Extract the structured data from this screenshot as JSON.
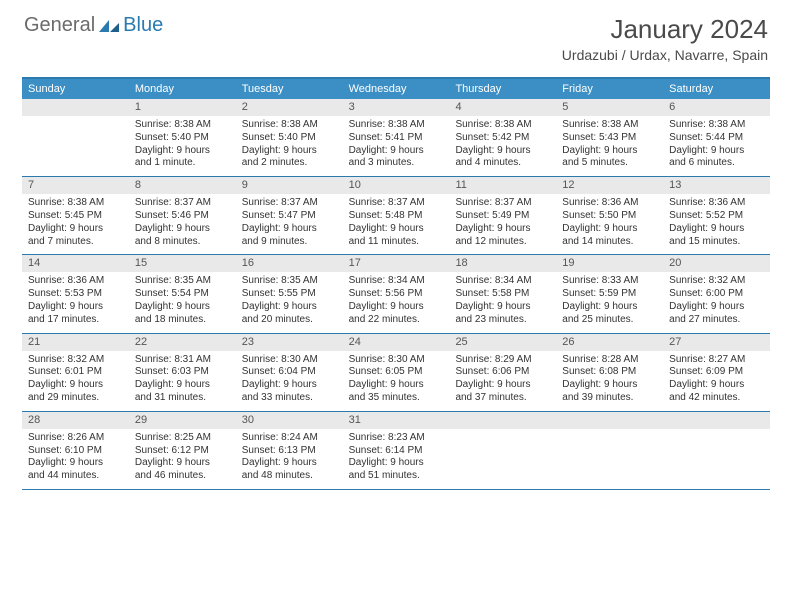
{
  "logo": {
    "general": "General",
    "blue": "Blue"
  },
  "title": "January 2024",
  "location": "Urdazubi / Urdax, Navarre, Spain",
  "colors": {
    "header_band": "#3b8fc4",
    "rule": "#2a7ab0",
    "day_band": "#e9e9e9",
    "text": "#333333",
    "title_text": "#4a4a4a",
    "logo_gray": "#6b6b6b",
    "logo_blue": "#2a7ab0",
    "background": "#ffffff"
  },
  "typography": {
    "title_fontsize": 26,
    "location_fontsize": 14,
    "dow_fontsize": 11,
    "daynum_fontsize": 11,
    "body_fontsize": 10
  },
  "dow": [
    "Sunday",
    "Monday",
    "Tuesday",
    "Wednesday",
    "Thursday",
    "Friday",
    "Saturday"
  ],
  "weeks": [
    [
      {
        "n": "",
        "lines": [
          "",
          "",
          "",
          ""
        ]
      },
      {
        "n": "1",
        "lines": [
          "Sunrise: 8:38 AM",
          "Sunset: 5:40 PM",
          "Daylight: 9 hours",
          "and 1 minute."
        ]
      },
      {
        "n": "2",
        "lines": [
          "Sunrise: 8:38 AM",
          "Sunset: 5:40 PM",
          "Daylight: 9 hours",
          "and 2 minutes."
        ]
      },
      {
        "n": "3",
        "lines": [
          "Sunrise: 8:38 AM",
          "Sunset: 5:41 PM",
          "Daylight: 9 hours",
          "and 3 minutes."
        ]
      },
      {
        "n": "4",
        "lines": [
          "Sunrise: 8:38 AM",
          "Sunset: 5:42 PM",
          "Daylight: 9 hours",
          "and 4 minutes."
        ]
      },
      {
        "n": "5",
        "lines": [
          "Sunrise: 8:38 AM",
          "Sunset: 5:43 PM",
          "Daylight: 9 hours",
          "and 5 minutes."
        ]
      },
      {
        "n": "6",
        "lines": [
          "Sunrise: 8:38 AM",
          "Sunset: 5:44 PM",
          "Daylight: 9 hours",
          "and 6 minutes."
        ]
      }
    ],
    [
      {
        "n": "7",
        "lines": [
          "Sunrise: 8:38 AM",
          "Sunset: 5:45 PM",
          "Daylight: 9 hours",
          "and 7 minutes."
        ]
      },
      {
        "n": "8",
        "lines": [
          "Sunrise: 8:37 AM",
          "Sunset: 5:46 PM",
          "Daylight: 9 hours",
          "and 8 minutes."
        ]
      },
      {
        "n": "9",
        "lines": [
          "Sunrise: 8:37 AM",
          "Sunset: 5:47 PM",
          "Daylight: 9 hours",
          "and 9 minutes."
        ]
      },
      {
        "n": "10",
        "lines": [
          "Sunrise: 8:37 AM",
          "Sunset: 5:48 PM",
          "Daylight: 9 hours",
          "and 11 minutes."
        ]
      },
      {
        "n": "11",
        "lines": [
          "Sunrise: 8:37 AM",
          "Sunset: 5:49 PM",
          "Daylight: 9 hours",
          "and 12 minutes."
        ]
      },
      {
        "n": "12",
        "lines": [
          "Sunrise: 8:36 AM",
          "Sunset: 5:50 PM",
          "Daylight: 9 hours",
          "and 14 minutes."
        ]
      },
      {
        "n": "13",
        "lines": [
          "Sunrise: 8:36 AM",
          "Sunset: 5:52 PM",
          "Daylight: 9 hours",
          "and 15 minutes."
        ]
      }
    ],
    [
      {
        "n": "14",
        "lines": [
          "Sunrise: 8:36 AM",
          "Sunset: 5:53 PM",
          "Daylight: 9 hours",
          "and 17 minutes."
        ]
      },
      {
        "n": "15",
        "lines": [
          "Sunrise: 8:35 AM",
          "Sunset: 5:54 PM",
          "Daylight: 9 hours",
          "and 18 minutes."
        ]
      },
      {
        "n": "16",
        "lines": [
          "Sunrise: 8:35 AM",
          "Sunset: 5:55 PM",
          "Daylight: 9 hours",
          "and 20 minutes."
        ]
      },
      {
        "n": "17",
        "lines": [
          "Sunrise: 8:34 AM",
          "Sunset: 5:56 PM",
          "Daylight: 9 hours",
          "and 22 minutes."
        ]
      },
      {
        "n": "18",
        "lines": [
          "Sunrise: 8:34 AM",
          "Sunset: 5:58 PM",
          "Daylight: 9 hours",
          "and 23 minutes."
        ]
      },
      {
        "n": "19",
        "lines": [
          "Sunrise: 8:33 AM",
          "Sunset: 5:59 PM",
          "Daylight: 9 hours",
          "and 25 minutes."
        ]
      },
      {
        "n": "20",
        "lines": [
          "Sunrise: 8:32 AM",
          "Sunset: 6:00 PM",
          "Daylight: 9 hours",
          "and 27 minutes."
        ]
      }
    ],
    [
      {
        "n": "21",
        "lines": [
          "Sunrise: 8:32 AM",
          "Sunset: 6:01 PM",
          "Daylight: 9 hours",
          "and 29 minutes."
        ]
      },
      {
        "n": "22",
        "lines": [
          "Sunrise: 8:31 AM",
          "Sunset: 6:03 PM",
          "Daylight: 9 hours",
          "and 31 minutes."
        ]
      },
      {
        "n": "23",
        "lines": [
          "Sunrise: 8:30 AM",
          "Sunset: 6:04 PM",
          "Daylight: 9 hours",
          "and 33 minutes."
        ]
      },
      {
        "n": "24",
        "lines": [
          "Sunrise: 8:30 AM",
          "Sunset: 6:05 PM",
          "Daylight: 9 hours",
          "and 35 minutes."
        ]
      },
      {
        "n": "25",
        "lines": [
          "Sunrise: 8:29 AM",
          "Sunset: 6:06 PM",
          "Daylight: 9 hours",
          "and 37 minutes."
        ]
      },
      {
        "n": "26",
        "lines": [
          "Sunrise: 8:28 AM",
          "Sunset: 6:08 PM",
          "Daylight: 9 hours",
          "and 39 minutes."
        ]
      },
      {
        "n": "27",
        "lines": [
          "Sunrise: 8:27 AM",
          "Sunset: 6:09 PM",
          "Daylight: 9 hours",
          "and 42 minutes."
        ]
      }
    ],
    [
      {
        "n": "28",
        "lines": [
          "Sunrise: 8:26 AM",
          "Sunset: 6:10 PM",
          "Daylight: 9 hours",
          "and 44 minutes."
        ]
      },
      {
        "n": "29",
        "lines": [
          "Sunrise: 8:25 AM",
          "Sunset: 6:12 PM",
          "Daylight: 9 hours",
          "and 46 minutes."
        ]
      },
      {
        "n": "30",
        "lines": [
          "Sunrise: 8:24 AM",
          "Sunset: 6:13 PM",
          "Daylight: 9 hours",
          "and 48 minutes."
        ]
      },
      {
        "n": "31",
        "lines": [
          "Sunrise: 8:23 AM",
          "Sunset: 6:14 PM",
          "Daylight: 9 hours",
          "and 51 minutes."
        ]
      },
      {
        "n": "",
        "lines": [
          "",
          "",
          "",
          ""
        ]
      },
      {
        "n": "",
        "lines": [
          "",
          "",
          "",
          ""
        ]
      },
      {
        "n": "",
        "lines": [
          "",
          "",
          "",
          ""
        ]
      }
    ]
  ]
}
